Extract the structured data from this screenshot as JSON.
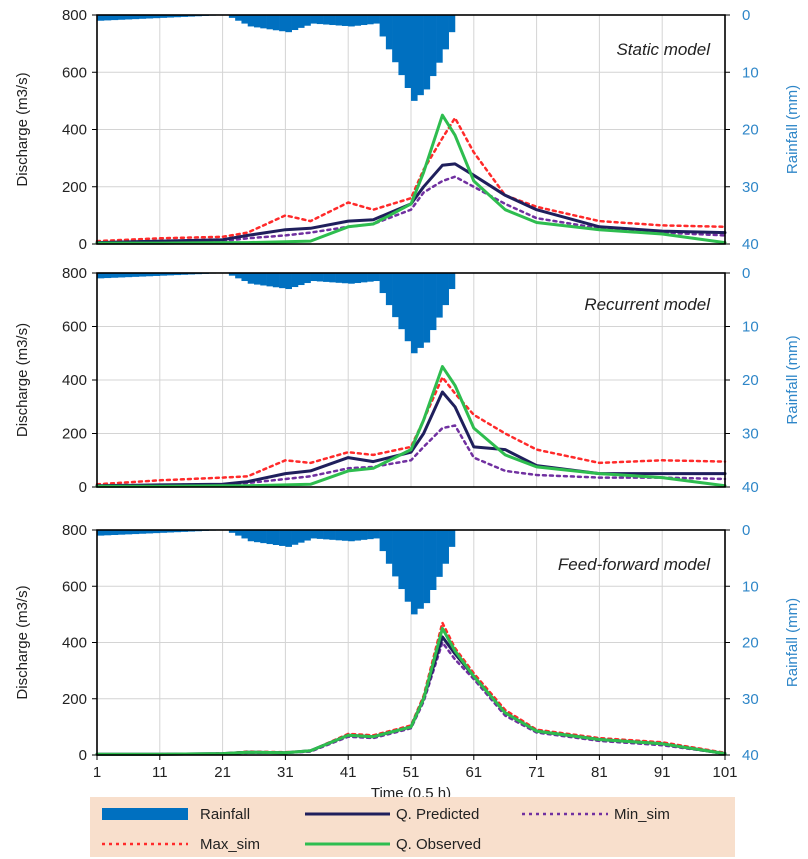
{
  "colors": {
    "rainfall": "#0070c0",
    "predicted": "#1f1f5c",
    "observed": "#2ebd4f",
    "max_sim": "#ff2a2a",
    "min_sim": "#7030a0",
    "rain_axis_text": "#2e86c8",
    "legend_bg": "#f8dfcc"
  },
  "chart_data": [
    {
      "type": "line",
      "title": "Static model",
      "ylabel": "Discharge (m3/s)",
      "y2label": "Rainfall (mm)",
      "ylim": [
        0,
        800
      ],
      "y2lim": [
        40,
        0
      ],
      "yticks": [
        0,
        200,
        400,
        600,
        800
      ],
      "y2ticks": [
        0,
        10,
        20,
        30,
        40
      ],
      "grid": true,
      "x": [
        1,
        11,
        21,
        25,
        31,
        35,
        41,
        45,
        51,
        53,
        56,
        58,
        61,
        66,
        71,
        81,
        91,
        101
      ],
      "series": [
        {
          "name": "Rainfall",
          "kind": "bar",
          "values": [
            1,
            0.5,
            0,
            2,
            3,
            1.5,
            2,
            1.5,
            15,
            13,
            6,
            0,
            0,
            0,
            0,
            0,
            0,
            0
          ]
        },
        {
          "name": "Q. Predicted",
          "values": [
            5,
            10,
            15,
            30,
            50,
            55,
            80,
            85,
            140,
            200,
            275,
            280,
            240,
            170,
            120,
            60,
            45,
            40
          ]
        },
        {
          "name": "Q. Observed",
          "values": [
            3,
            3,
            5,
            5,
            8,
            10,
            60,
            70,
            140,
            250,
            450,
            380,
            220,
            120,
            75,
            50,
            35,
            5
          ]
        },
        {
          "name": "Max_sim",
          "values": [
            10,
            20,
            25,
            40,
            100,
            80,
            145,
            120,
            160,
            260,
            370,
            440,
            320,
            170,
            130,
            80,
            65,
            60
          ]
        },
        {
          "name": "Min_sim",
          "values": [
            5,
            8,
            10,
            20,
            30,
            40,
            60,
            70,
            120,
            180,
            220,
            235,
            200,
            140,
            90,
            55,
            40,
            30
          ]
        }
      ]
    },
    {
      "type": "line",
      "title": "Recurrent model",
      "ylabel": "Discharge (m3/s)",
      "y2label": "Rainfall (mm)",
      "ylim": [
        0,
        800
      ],
      "y2lim": [
        40,
        0
      ],
      "yticks": [
        0,
        200,
        400,
        600,
        800
      ],
      "y2ticks": [
        0,
        10,
        20,
        30,
        40
      ],
      "grid": true,
      "x": [
        1,
        11,
        21,
        25,
        31,
        35,
        41,
        45,
        51,
        53,
        56,
        58,
        61,
        66,
        71,
        81,
        91,
        101
      ],
      "series": [
        {
          "name": "Rainfall",
          "kind": "bar",
          "values": [
            1,
            0.5,
            0,
            2,
            3,
            1.5,
            2,
            1.5,
            15,
            13,
            6,
            0,
            0,
            0,
            0,
            0,
            0,
            0
          ]
        },
        {
          "name": "Q. Predicted",
          "values": [
            5,
            8,
            10,
            20,
            50,
            60,
            110,
            95,
            130,
            200,
            355,
            300,
            150,
            140,
            80,
            50,
            50,
            50
          ]
        },
        {
          "name": "Q. Observed",
          "values": [
            3,
            3,
            5,
            5,
            8,
            10,
            60,
            70,
            140,
            250,
            450,
            380,
            220,
            120,
            75,
            50,
            35,
            5
          ]
        },
        {
          "name": "Max_sim",
          "values": [
            10,
            25,
            35,
            40,
            100,
            90,
            130,
            120,
            150,
            250,
            410,
            350,
            270,
            200,
            140,
            90,
            100,
            95
          ]
        },
        {
          "name": "Min_sim",
          "values": [
            5,
            8,
            10,
            15,
            30,
            40,
            70,
            75,
            100,
            150,
            220,
            230,
            110,
            60,
            45,
            35,
            35,
            30
          ]
        }
      ]
    },
    {
      "type": "line",
      "title": "Feed-forward model",
      "ylabel": "Discharge (m3/s)",
      "y2label": "Rainfall (mm)",
      "ylim": [
        0,
        800
      ],
      "y2lim": [
        40,
        0
      ],
      "yticks": [
        0,
        200,
        400,
        600,
        800
      ],
      "y2ticks": [
        0,
        10,
        20,
        30,
        40
      ],
      "grid": true,
      "x": [
        1,
        11,
        21,
        25,
        31,
        35,
        41,
        45,
        51,
        53,
        56,
        58,
        61,
        66,
        71,
        81,
        91,
        101
      ],
      "xticks": [
        1,
        11,
        21,
        31,
        41,
        51,
        61,
        71,
        81,
        91,
        101
      ],
      "xlabel": "Time (0.5 h)",
      "series": [
        {
          "name": "Rainfall",
          "kind": "bar",
          "values": [
            1,
            0.5,
            0,
            2,
            3,
            1.5,
            2,
            1.5,
            15,
            13,
            6,
            0,
            0,
            0,
            0,
            0,
            0,
            0
          ]
        },
        {
          "name": "Q. Predicted",
          "values": [
            3,
            3,
            5,
            10,
            8,
            15,
            70,
            65,
            100,
            200,
            420,
            360,
            280,
            150,
            85,
            55,
            40,
            5
          ]
        },
        {
          "name": "Q. Observed",
          "values": [
            3,
            3,
            5,
            10,
            8,
            15,
            70,
            65,
            100,
            200,
            450,
            370,
            280,
            150,
            85,
            55,
            40,
            5
          ]
        },
        {
          "name": "Max_sim",
          "values": [
            3,
            3,
            5,
            12,
            10,
            15,
            75,
            70,
            105,
            210,
            470,
            380,
            290,
            160,
            90,
            60,
            45,
            8
          ]
        },
        {
          "name": "Min_sim",
          "values": [
            3,
            3,
            5,
            8,
            8,
            12,
            65,
            60,
            95,
            190,
            400,
            340,
            270,
            140,
            80,
            50,
            35,
            5
          ]
        }
      ]
    }
  ],
  "legend": {
    "items": [
      "Rainfall",
      "Q. Predicted",
      "Min_sim",
      "Max_sim",
      "Q. Observed"
    ]
  }
}
